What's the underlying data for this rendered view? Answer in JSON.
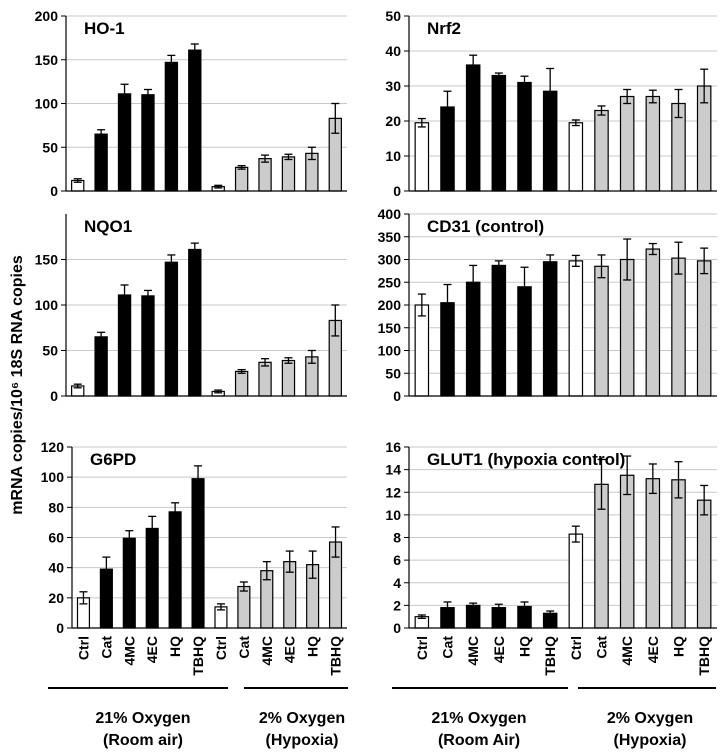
{
  "y_axis_label": "mRNA copies/10⁶ 18S RNA copies",
  "group_labels": {
    "left": [
      {
        "line1": "21% Oxygen",
        "line2": "(Room air)"
      },
      {
        "line1": "2% Oxygen",
        "line2": "(Hypoxia)"
      }
    ],
    "right": [
      {
        "line1": "21% Oxygen",
        "line2": "(Room Air)"
      },
      {
        "line1": "2% Oxygen",
        "line2": "(Hypoxia)"
      }
    ]
  },
  "colors": {
    "room_air": "#000000",
    "hypoxia": "#cccccc",
    "control": "#ffffff",
    "axis": "#000000",
    "grid": "#c8c8c8"
  },
  "chart_data": [
    {
      "type": "bar",
      "title": "HO-1",
      "ylim": [
        0,
        200
      ],
      "yticks": [
        0,
        50,
        100,
        150,
        200
      ],
      "categories": [
        "Ctrl",
        "Cat",
        "4MC",
        "4EC",
        "HQ",
        "TBHQ",
        "Ctrl",
        "Cat",
        "4MC",
        "4EC",
        "HQ",
        "TBHQ"
      ],
      "values": [
        12,
        65,
        111,
        110,
        147,
        161,
        5,
        27,
        37,
        39,
        43,
        83
      ],
      "errors": [
        2,
        5,
        11,
        6,
        8,
        7,
        1.5,
        2,
        4,
        3,
        7,
        17
      ],
      "fills": [
        "control",
        "room_air",
        "room_air",
        "room_air",
        "room_air",
        "room_air",
        "control",
        "hypoxia",
        "hypoxia",
        "hypoxia",
        "hypoxia",
        "hypoxia"
      ],
      "show_xticks": false
    },
    {
      "type": "bar",
      "title": "Nrf2",
      "ylim": [
        0,
        50
      ],
      "yticks": [
        0,
        10,
        20,
        30,
        40,
        50
      ],
      "categories": [
        "Ctrl",
        "Cat",
        "4MC",
        "4EC",
        "HQ",
        "TBHQ",
        "Ctrl",
        "Cat",
        "4MC",
        "4EC",
        "HQ",
        "TBHQ"
      ],
      "values": [
        19.5,
        24,
        36,
        33,
        31,
        28.5,
        19.5,
        23,
        27,
        27,
        25,
        30
      ],
      "errors": [
        1.2,
        4.5,
        2.8,
        0.7,
        1.8,
        6.5,
        0.8,
        1.3,
        2,
        1.8,
        4,
        4.8
      ],
      "fills": [
        "control",
        "room_air",
        "room_air",
        "room_air",
        "room_air",
        "room_air",
        "control",
        "hypoxia",
        "hypoxia",
        "hypoxia",
        "hypoxia",
        "hypoxia"
      ],
      "show_xticks": false
    },
    {
      "type": "bar",
      "title": "NQO1",
      "ylim": [
        0,
        200
      ],
      "yticks": [
        0,
        50,
        100,
        150
      ],
      "categories": [
        "Ctrl",
        "Cat",
        "4MC",
        "4EC",
        "HQ",
        "TBHQ",
        "Ctrl",
        "Cat",
        "4MC",
        "4EC",
        "HQ",
        "TBHQ"
      ],
      "values": [
        11,
        65,
        111,
        110,
        147,
        161,
        5,
        27,
        37,
        39,
        43,
        83
      ],
      "errors": [
        2,
        5,
        11,
        6,
        8,
        7,
        1.5,
        2,
        4,
        3,
        7,
        17
      ],
      "fills": [
        "control",
        "room_air",
        "room_air",
        "room_air",
        "room_air",
        "room_air",
        "control",
        "hypoxia",
        "hypoxia",
        "hypoxia",
        "hypoxia",
        "hypoxia"
      ],
      "show_xticks": false
    },
    {
      "type": "bar",
      "title": "CD31 (control)",
      "ylim": [
        0,
        400
      ],
      "yticks": [
        0,
        50,
        100,
        150,
        200,
        250,
        300,
        350,
        400
      ],
      "categories": [
        "Ctrl",
        "Cat",
        "4MC",
        "4EC",
        "HQ",
        "TBHQ",
        "Ctrl",
        "Cat",
        "4MC",
        "4EC",
        "HQ",
        "TBHQ"
      ],
      "values": [
        200,
        205,
        250,
        287,
        240,
        295,
        297,
        285,
        300,
        323,
        303,
        297
      ],
      "errors": [
        24,
        40,
        37,
        10,
        43,
        15,
        12,
        25,
        45,
        12,
        35,
        28
      ],
      "fills": [
        "control",
        "room_air",
        "room_air",
        "room_air",
        "room_air",
        "room_air",
        "control",
        "hypoxia",
        "hypoxia",
        "hypoxia",
        "hypoxia",
        "hypoxia"
      ],
      "show_xticks": false
    },
    {
      "type": "bar",
      "title": "G6PD",
      "ylim": [
        0,
        120
      ],
      "yticks": [
        0,
        20,
        40,
        60,
        80,
        100,
        120
      ],
      "categories": [
        "Ctrl",
        "Cat",
        "4MC",
        "4EC",
        "HQ",
        "TBHQ",
        "Ctrl",
        "Cat",
        "4MC",
        "4EC",
        "HQ",
        "TBHQ"
      ],
      "values": [
        20,
        39,
        59.5,
        66,
        77,
        99,
        14,
        27.5,
        38,
        44,
        42,
        57
      ],
      "errors": [
        4,
        8,
        5,
        8,
        6,
        8.5,
        2,
        3,
        6,
        7,
        9,
        10
      ],
      "fills": [
        "control",
        "room_air",
        "room_air",
        "room_air",
        "room_air",
        "room_air",
        "control",
        "hypoxia",
        "hypoxia",
        "hypoxia",
        "hypoxia",
        "hypoxia"
      ],
      "show_xticks": true
    },
    {
      "type": "bar",
      "title": "GLUT1 (hypoxia control)",
      "ylim": [
        0,
        16
      ],
      "yticks": [
        0,
        2,
        4,
        6,
        8,
        10,
        12,
        14,
        16
      ],
      "categories": [
        "Ctrl",
        "Cat",
        "4MC",
        "4EC",
        "HQ",
        "TBHQ",
        "Ctrl",
        "Cat",
        "4MC",
        "4EC",
        "HQ",
        "TBHQ"
      ],
      "values": [
        1.0,
        1.8,
        2.0,
        1.8,
        1.9,
        1.3,
        8.3,
        12.7,
        13.5,
        13.2,
        13.1,
        11.3
      ],
      "errors": [
        0.15,
        0.5,
        0.2,
        0.3,
        0.4,
        0.2,
        0.7,
        2.2,
        1.7,
        1.3,
        1.6,
        1.3
      ],
      "fills": [
        "control",
        "room_air",
        "room_air",
        "room_air",
        "room_air",
        "room_air",
        "control",
        "hypoxia",
        "hypoxia",
        "hypoxia",
        "hypoxia",
        "hypoxia"
      ],
      "show_xticks": true
    }
  ]
}
